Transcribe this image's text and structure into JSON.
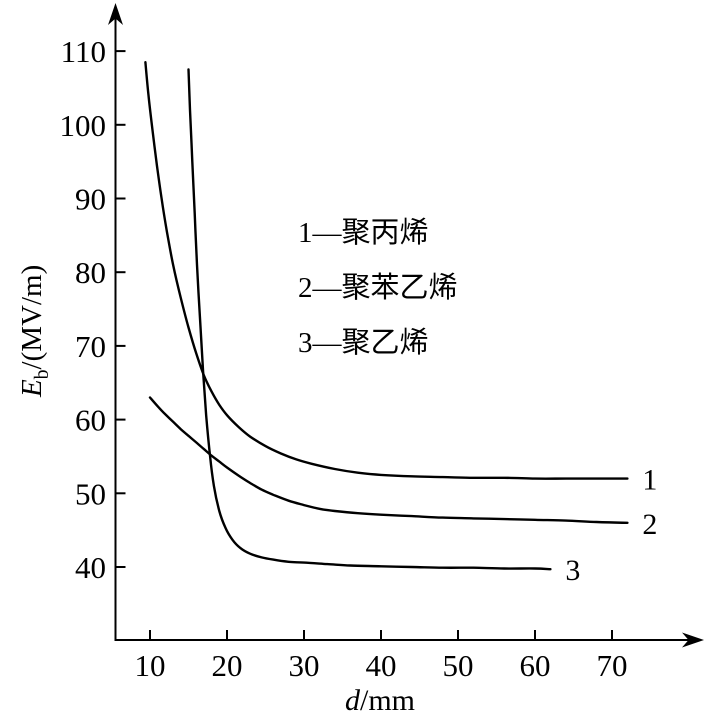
{
  "figure": {
    "background": "#ffffff",
    "ink_color": "#000000"
  },
  "chart_data": {
    "type": "line",
    "title": "",
    "xlabel": "d/mm",
    "ylabel": "Eb/(MV/m)",
    "xlabel_parts": {
      "var": "d",
      "rest": "/mm"
    },
    "ylabel_parts": {
      "var": "E",
      "sub": "b",
      "rest": "/(MV/m)"
    },
    "x_ticks": [
      10,
      20,
      30,
      40,
      50,
      60,
      70
    ],
    "y_ticks": [
      40,
      50,
      60,
      70,
      80,
      90,
      100,
      110
    ],
    "xlim": [
      5.5,
      80
    ],
    "ylim": [
      30,
      116
    ],
    "grid": false,
    "legend_position": "inside upper-middle",
    "legend": [
      "1—聚丙烯",
      "2—聚苯乙烯",
      "3—聚乙烯"
    ],
    "series": [
      {
        "name": "聚丙烯",
        "end_label": "1",
        "points": [
          [
            9.4,
            108.5
          ],
          [
            9.8,
            104
          ],
          [
            10.3,
            99.5
          ],
          [
            10.9,
            94.5
          ],
          [
            11.5,
            90
          ],
          [
            12.2,
            85.5
          ],
          [
            13,
            81
          ],
          [
            14,
            76.5
          ],
          [
            15,
            72.5
          ],
          [
            16,
            69
          ],
          [
            17,
            66
          ],
          [
            18,
            63.8
          ],
          [
            19,
            62
          ],
          [
            20,
            60.6
          ],
          [
            21.5,
            59
          ],
          [
            23,
            57.7
          ],
          [
            25,
            56.4
          ],
          [
            27,
            55.4
          ],
          [
            29,
            54.6
          ],
          [
            31,
            54
          ],
          [
            34,
            53.3
          ],
          [
            37,
            52.8
          ],
          [
            40,
            52.5
          ],
          [
            44,
            52.3
          ],
          [
            48,
            52.2
          ],
          [
            52,
            52.1
          ],
          [
            56,
            52.1
          ],
          [
            60,
            52
          ],
          [
            64,
            52
          ],
          [
            68,
            52
          ],
          [
            72,
            52
          ]
        ]
      },
      {
        "name": "聚苯乙烯",
        "end_label": "2",
        "points": [
          [
            10,
            63
          ],
          [
            11,
            61.8
          ],
          [
            12,
            60.7
          ],
          [
            13,
            59.7
          ],
          [
            14,
            58.7
          ],
          [
            15,
            57.8
          ],
          [
            16,
            56.9
          ],
          [
            17,
            56
          ],
          [
            18,
            55.1
          ],
          [
            19,
            54.3
          ],
          [
            20,
            53.5
          ],
          [
            21.5,
            52.4
          ],
          [
            23,
            51.4
          ],
          [
            24.5,
            50.5
          ],
          [
            26,
            49.8
          ],
          [
            28,
            49
          ],
          [
            30,
            48.4
          ],
          [
            32,
            47.9
          ],
          [
            34,
            47.6
          ],
          [
            37,
            47.3
          ],
          [
            40,
            47.1
          ],
          [
            44,
            46.9
          ],
          [
            48,
            46.7
          ],
          [
            52,
            46.6
          ],
          [
            56,
            46.5
          ],
          [
            60,
            46.4
          ],
          [
            64,
            46.3
          ],
          [
            68,
            46.1
          ],
          [
            72,
            46
          ]
        ]
      },
      {
        "name": "聚乙烯",
        "end_label": "3",
        "points": [
          [
            15,
            107.5
          ],
          [
            15.2,
            102
          ],
          [
            15.5,
            95
          ],
          [
            15.8,
            88
          ],
          [
            16.1,
            81
          ],
          [
            16.5,
            73.5
          ],
          [
            16.9,
            66.5
          ],
          [
            17.3,
            60.5
          ],
          [
            17.8,
            55
          ],
          [
            18.3,
            51
          ],
          [
            19,
            47.6
          ],
          [
            19.8,
            45.3
          ],
          [
            20.7,
            43.7
          ],
          [
            21.7,
            42.6
          ],
          [
            23,
            41.8
          ],
          [
            24.5,
            41.3
          ],
          [
            26,
            41
          ],
          [
            28,
            40.7
          ],
          [
            30,
            40.6
          ],
          [
            33,
            40.4
          ],
          [
            36,
            40.2
          ],
          [
            40,
            40.1
          ],
          [
            44,
            40
          ],
          [
            48,
            39.9
          ],
          [
            52,
            39.9
          ],
          [
            56,
            39.8
          ],
          [
            60,
            39.8
          ],
          [
            62,
            39.7
          ]
        ]
      }
    ]
  }
}
